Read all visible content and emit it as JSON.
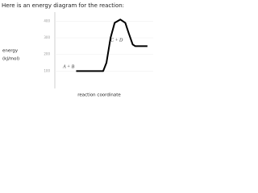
{
  "chart_data": {
    "type": "line",
    "title": "Here is an energy diagram for the reaction:",
    "ylabel": [
      "energy",
      "(kJ/mol)"
    ],
    "xlabel": "reaction coordinate",
    "annotations": [
      "A + B",
      "C + D"
    ],
    "x": [
      2.6,
      5.9,
      6.3,
      6.8,
      7.3,
      8,
      8.6,
      9,
      9.5,
      9.8,
      11.3
    ],
    "xlim": [
      0,
      12
    ],
    "series": [
      {
        "color": "#000000",
        "values": [
          100,
          100,
          150,
          300,
          390,
          410,
          390,
          330,
          260,
          250,
          250
        ]
      }
    ],
    "ylim": [
      0,
      450
    ],
    "yticks": [
      100,
      200,
      300,
      400
    ],
    "grid": true
  }
}
